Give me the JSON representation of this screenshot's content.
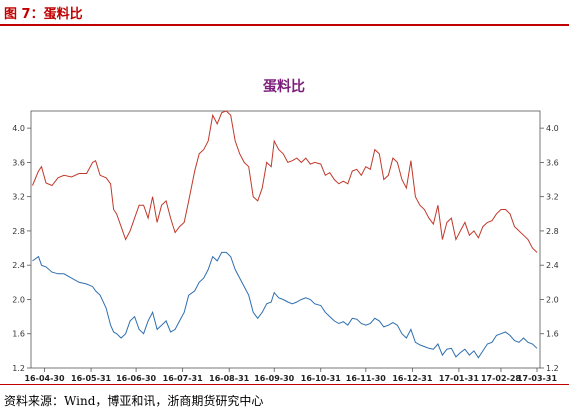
{
  "figure": {
    "label": "图 7：蛋料比"
  },
  "footer": {
    "source": "资料来源：Wind，博亚和讯，浙商期货研究中心"
  },
  "colors": {
    "accent": "#c00000",
    "series_red": "#c0392b",
    "series_blue": "#2e6fb0",
    "title": "#7b1f7b"
  },
  "chart_data": {
    "type": "line",
    "title": "蛋料比",
    "xlabel": "",
    "ylabel": "",
    "ylim": [
      1.2,
      4.2
    ],
    "yticks": [
      "1.2",
      "1.6",
      "2.0",
      "2.4",
      "2.8",
      "3.2",
      "3.6",
      "4.0"
    ],
    "xticks": [
      "16-04-30",
      "16-05-31",
      "16-06-30",
      "16-07-31",
      "16-08-31",
      "16-09-30",
      "16-10-31",
      "16-11-30",
      "16-12-31",
      "17-01-31",
      "17-02-28",
      "17-03-31"
    ],
    "grid": false,
    "legend": "none",
    "series": [
      {
        "color": "#c0392b",
        "points": [
          [
            "2016-04-22",
            3.33
          ],
          [
            "2016-04-26",
            3.5
          ],
          [
            "2016-04-28",
            3.55
          ],
          [
            "2016-05-01",
            3.36
          ],
          [
            "2016-05-05",
            3.33
          ],
          [
            "2016-05-09",
            3.42
          ],
          [
            "2016-05-13",
            3.45
          ],
          [
            "2016-05-18",
            3.43
          ],
          [
            "2016-05-23",
            3.47
          ],
          [
            "2016-05-28",
            3.47
          ],
          [
            "2016-06-01",
            3.6
          ],
          [
            "2016-06-03",
            3.62
          ],
          [
            "2016-06-06",
            3.45
          ],
          [
            "2016-06-10",
            3.42
          ],
          [
            "2016-06-13",
            3.35
          ],
          [
            "2016-06-15",
            3.05
          ],
          [
            "2016-06-17",
            3.0
          ],
          [
            "2016-06-20",
            2.85
          ],
          [
            "2016-06-23",
            2.7
          ],
          [
            "2016-06-26",
            2.8
          ],
          [
            "2016-06-29",
            2.95
          ],
          [
            "2016-07-02",
            3.1
          ],
          [
            "2016-07-05",
            3.1
          ],
          [
            "2016-07-08",
            2.95
          ],
          [
            "2016-07-11",
            3.2
          ],
          [
            "2016-07-14",
            2.9
          ],
          [
            "2016-07-17",
            3.1
          ],
          [
            "2016-07-20",
            3.15
          ],
          [
            "2016-07-23",
            2.95
          ],
          [
            "2016-07-26",
            2.78
          ],
          [
            "2016-07-29",
            2.85
          ],
          [
            "2016-08-01",
            2.9
          ],
          [
            "2016-08-04",
            3.15
          ],
          [
            "2016-08-08",
            3.5
          ],
          [
            "2016-08-11",
            3.7
          ],
          [
            "2016-08-14",
            3.75
          ],
          [
            "2016-08-17",
            3.85
          ],
          [
            "2016-08-20",
            4.15
          ],
          [
            "2016-08-23",
            4.05
          ],
          [
            "2016-08-26",
            4.18
          ],
          [
            "2016-08-29",
            4.2
          ],
          [
            "2016-09-01",
            4.15
          ],
          [
            "2016-09-04",
            3.85
          ],
          [
            "2016-09-07",
            3.7
          ],
          [
            "2016-09-10",
            3.6
          ],
          [
            "2016-09-13",
            3.55
          ],
          [
            "2016-09-16",
            3.2
          ],
          [
            "2016-09-19",
            3.15
          ],
          [
            "2016-09-22",
            3.3
          ],
          [
            "2016-09-25",
            3.6
          ],
          [
            "2016-09-28",
            3.55
          ],
          [
            "2016-09-30",
            3.85
          ],
          [
            "2016-10-03",
            3.75
          ],
          [
            "2016-10-06",
            3.7
          ],
          [
            "2016-10-09",
            3.6
          ],
          [
            "2016-10-12",
            3.62
          ],
          [
            "2016-10-15",
            3.65
          ],
          [
            "2016-10-18",
            3.6
          ],
          [
            "2016-10-21",
            3.65
          ],
          [
            "2016-10-24",
            3.58
          ],
          [
            "2016-10-27",
            3.6
          ],
          [
            "2016-10-31",
            3.58
          ],
          [
            "2016-11-03",
            3.45
          ],
          [
            "2016-11-06",
            3.48
          ],
          [
            "2016-11-09",
            3.4
          ],
          [
            "2016-11-12",
            3.35
          ],
          [
            "2016-11-15",
            3.38
          ],
          [
            "2016-11-18",
            3.35
          ],
          [
            "2016-11-21",
            3.5
          ],
          [
            "2016-11-24",
            3.52
          ],
          [
            "2016-11-27",
            3.45
          ],
          [
            "2016-11-30",
            3.55
          ],
          [
            "2016-12-03",
            3.52
          ],
          [
            "2016-12-06",
            3.75
          ],
          [
            "2016-12-09",
            3.7
          ],
          [
            "2016-12-12",
            3.4
          ],
          [
            "2016-12-15",
            3.45
          ],
          [
            "2016-12-18",
            3.65
          ],
          [
            "2016-12-21",
            3.6
          ],
          [
            "2016-12-24",
            3.4
          ],
          [
            "2016-12-27",
            3.3
          ],
          [
            "2016-12-30",
            3.62
          ],
          [
            "2017-01-02",
            3.2
          ],
          [
            "2017-01-05",
            3.1
          ],
          [
            "2017-01-08",
            3.05
          ],
          [
            "2017-01-11",
            2.95
          ],
          [
            "2017-01-14",
            2.88
          ],
          [
            "2017-01-17",
            3.1
          ],
          [
            "2017-01-20",
            2.7
          ],
          [
            "2017-01-23",
            2.9
          ],
          [
            "2017-01-26",
            2.95
          ],
          [
            "2017-01-29",
            2.7
          ],
          [
            "2017-02-01",
            2.8
          ],
          [
            "2017-02-04",
            2.9
          ],
          [
            "2017-02-07",
            2.75
          ],
          [
            "2017-02-10",
            2.8
          ],
          [
            "2017-02-13",
            2.72
          ],
          [
            "2017-02-16",
            2.85
          ],
          [
            "2017-02-19",
            2.9
          ],
          [
            "2017-02-22",
            2.92
          ],
          [
            "2017-02-25",
            3.0
          ],
          [
            "2017-02-28",
            3.05
          ],
          [
            "2017-03-03",
            3.05
          ],
          [
            "2017-03-06",
            3.0
          ],
          [
            "2017-03-09",
            2.85
          ],
          [
            "2017-03-12",
            2.8
          ],
          [
            "2017-03-15",
            2.75
          ],
          [
            "2017-03-18",
            2.7
          ],
          [
            "2017-03-21",
            2.6
          ],
          [
            "2017-03-24",
            2.55
          ]
        ]
      },
      {
        "color": "#2e6fb0",
        "points": [
          [
            "2016-04-22",
            2.45
          ],
          [
            "2016-04-26",
            2.5
          ],
          [
            "2016-04-28",
            2.4
          ],
          [
            "2016-05-01",
            2.38
          ],
          [
            "2016-05-05",
            2.32
          ],
          [
            "2016-05-09",
            2.3
          ],
          [
            "2016-05-13",
            2.3
          ],
          [
            "2016-05-18",
            2.25
          ],
          [
            "2016-05-23",
            2.2
          ],
          [
            "2016-05-28",
            2.18
          ],
          [
            "2016-06-01",
            2.15
          ],
          [
            "2016-06-03",
            2.1
          ],
          [
            "2016-06-06",
            2.05
          ],
          [
            "2016-06-10",
            1.9
          ],
          [
            "2016-06-13",
            1.7
          ],
          [
            "2016-06-15",
            1.62
          ],
          [
            "2016-06-17",
            1.6
          ],
          [
            "2016-06-20",
            1.55
          ],
          [
            "2016-06-23",
            1.6
          ],
          [
            "2016-06-26",
            1.75
          ],
          [
            "2016-06-29",
            1.8
          ],
          [
            "2016-07-02",
            1.65
          ],
          [
            "2016-07-05",
            1.6
          ],
          [
            "2016-07-08",
            1.75
          ],
          [
            "2016-07-11",
            1.85
          ],
          [
            "2016-07-14",
            1.65
          ],
          [
            "2016-07-17",
            1.7
          ],
          [
            "2016-07-20",
            1.75
          ],
          [
            "2016-07-23",
            1.62
          ],
          [
            "2016-07-26",
            1.65
          ],
          [
            "2016-07-29",
            1.75
          ],
          [
            "2016-08-01",
            1.85
          ],
          [
            "2016-08-04",
            2.05
          ],
          [
            "2016-08-08",
            2.1
          ],
          [
            "2016-08-11",
            2.2
          ],
          [
            "2016-08-14",
            2.25
          ],
          [
            "2016-08-17",
            2.35
          ],
          [
            "2016-08-20",
            2.5
          ],
          [
            "2016-08-23",
            2.45
          ],
          [
            "2016-08-26",
            2.55
          ],
          [
            "2016-08-29",
            2.55
          ],
          [
            "2016-09-01",
            2.5
          ],
          [
            "2016-09-04",
            2.35
          ],
          [
            "2016-09-07",
            2.25
          ],
          [
            "2016-09-10",
            2.15
          ],
          [
            "2016-09-13",
            2.05
          ],
          [
            "2016-09-16",
            1.85
          ],
          [
            "2016-09-19",
            1.78
          ],
          [
            "2016-09-22",
            1.85
          ],
          [
            "2016-09-25",
            1.95
          ],
          [
            "2016-09-28",
            1.97
          ],
          [
            "2016-09-30",
            2.08
          ],
          [
            "2016-10-03",
            2.02
          ],
          [
            "2016-10-06",
            2.0
          ],
          [
            "2016-10-09",
            1.97
          ],
          [
            "2016-10-12",
            1.95
          ],
          [
            "2016-10-15",
            1.97
          ],
          [
            "2016-10-18",
            2.0
          ],
          [
            "2016-10-21",
            2.02
          ],
          [
            "2016-10-24",
            2.0
          ],
          [
            "2016-10-27",
            1.95
          ],
          [
            "2016-10-31",
            1.93
          ],
          [
            "2016-11-03",
            1.85
          ],
          [
            "2016-11-06",
            1.8
          ],
          [
            "2016-11-09",
            1.75
          ],
          [
            "2016-11-12",
            1.72
          ],
          [
            "2016-11-15",
            1.74
          ],
          [
            "2016-11-18",
            1.7
          ],
          [
            "2016-11-21",
            1.78
          ],
          [
            "2016-11-24",
            1.77
          ],
          [
            "2016-11-27",
            1.72
          ],
          [
            "2016-11-30",
            1.7
          ],
          [
            "2016-12-03",
            1.72
          ],
          [
            "2016-12-06",
            1.78
          ],
          [
            "2016-12-09",
            1.75
          ],
          [
            "2016-12-12",
            1.68
          ],
          [
            "2016-12-15",
            1.7
          ],
          [
            "2016-12-18",
            1.73
          ],
          [
            "2016-12-21",
            1.7
          ],
          [
            "2016-12-24",
            1.6
          ],
          [
            "2016-12-27",
            1.55
          ],
          [
            "2016-12-30",
            1.65
          ],
          [
            "2017-01-02",
            1.5
          ],
          [
            "2017-01-05",
            1.47
          ],
          [
            "2017-01-08",
            1.45
          ],
          [
            "2017-01-11",
            1.43
          ],
          [
            "2017-01-14",
            1.42
          ],
          [
            "2017-01-17",
            1.48
          ],
          [
            "2017-01-20",
            1.35
          ],
          [
            "2017-01-23",
            1.42
          ],
          [
            "2017-01-26",
            1.43
          ],
          [
            "2017-01-29",
            1.33
          ],
          [
            "2017-02-01",
            1.38
          ],
          [
            "2017-02-04",
            1.42
          ],
          [
            "2017-02-07",
            1.35
          ],
          [
            "2017-02-10",
            1.4
          ],
          [
            "2017-02-13",
            1.32
          ],
          [
            "2017-02-16",
            1.4
          ],
          [
            "2017-02-19",
            1.48
          ],
          [
            "2017-02-22",
            1.5
          ],
          [
            "2017-02-25",
            1.58
          ],
          [
            "2017-02-28",
            1.6
          ],
          [
            "2017-03-03",
            1.62
          ],
          [
            "2017-03-06",
            1.58
          ],
          [
            "2017-03-09",
            1.52
          ],
          [
            "2017-03-12",
            1.5
          ],
          [
            "2017-03-15",
            1.55
          ],
          [
            "2017-03-18",
            1.5
          ],
          [
            "2017-03-21",
            1.48
          ],
          [
            "2017-03-24",
            1.43
          ]
        ]
      }
    ]
  }
}
